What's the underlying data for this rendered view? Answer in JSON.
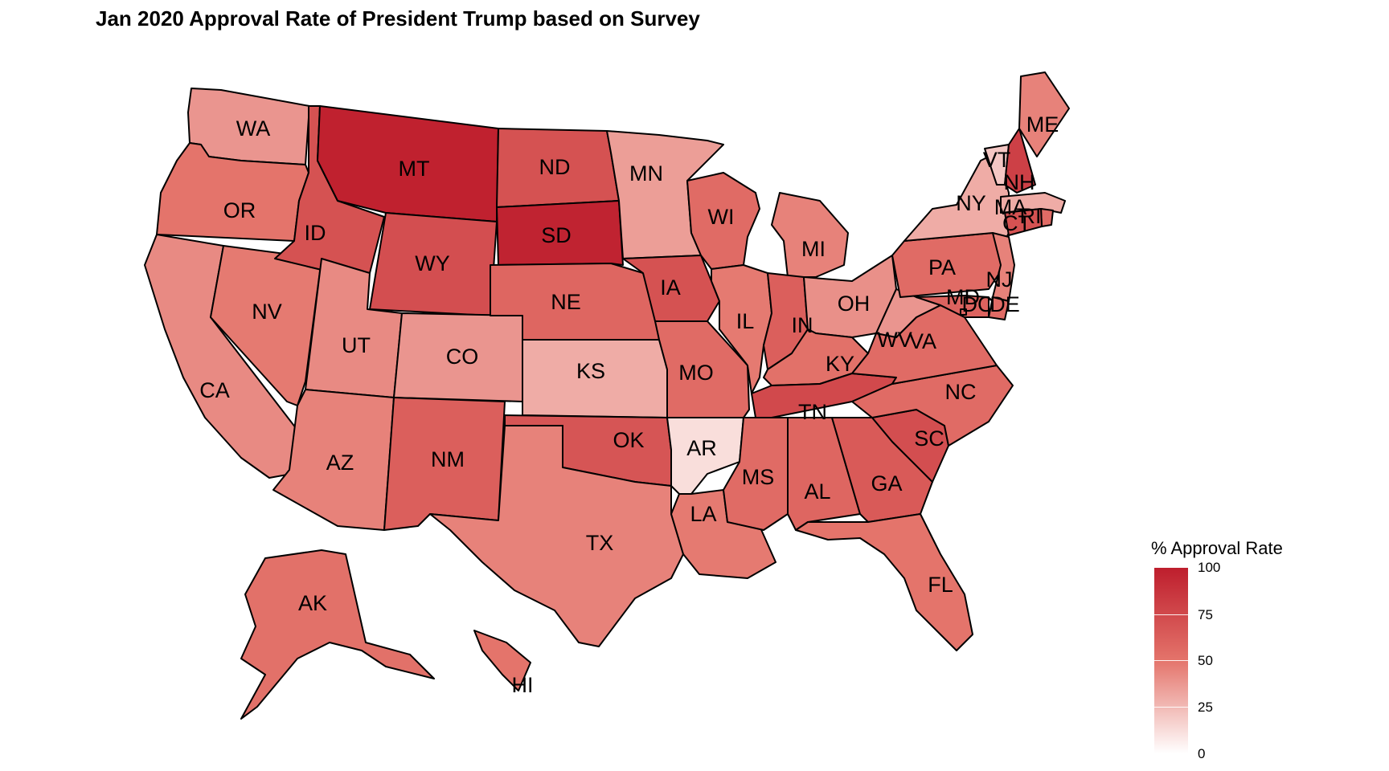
{
  "title": "Jan 2020 Approval Rate of President Trump based on Survey",
  "legend": {
    "title": "% Approval Rate",
    "ticks": [
      "100",
      "75",
      "50",
      "25",
      "0"
    ],
    "scale": {
      "min": 0,
      "mid": 50,
      "max": 100,
      "low_color": "#ffffff",
      "mid_color": "#e4746b",
      "high_color": "#be1e2d"
    }
  },
  "states": [
    {
      "abbr": "WA",
      "approval": 38
    },
    {
      "abbr": "OR",
      "approval": 50
    },
    {
      "abbr": "CA",
      "approval": 42
    },
    {
      "abbr": "NV",
      "approval": 48
    },
    {
      "abbr": "ID",
      "approval": 70
    },
    {
      "abbr": "MT",
      "approval": 98
    },
    {
      "abbr": "WY",
      "approval": 72
    },
    {
      "abbr": "UT",
      "approval": 42
    },
    {
      "abbr": "AZ",
      "approval": 45
    },
    {
      "abbr": "CO",
      "approval": 38
    },
    {
      "abbr": "NM",
      "approval": 62
    },
    {
      "abbr": "ND",
      "approval": 70
    },
    {
      "abbr": "SD",
      "approval": 97
    },
    {
      "abbr": "NE",
      "approval": 58
    },
    {
      "abbr": "KS",
      "approval": 30
    },
    {
      "abbr": "OK",
      "approval": 68
    },
    {
      "abbr": "TX",
      "approval": 45
    },
    {
      "abbr": "MN",
      "approval": 35
    },
    {
      "abbr": "IA",
      "approval": 70
    },
    {
      "abbr": "MO",
      "approval": 55
    },
    {
      "abbr": "AR",
      "approval": 12
    },
    {
      "abbr": "LA",
      "approval": 48
    },
    {
      "abbr": "WI",
      "approval": 55
    },
    {
      "abbr": "IL",
      "approval": 48
    },
    {
      "abbr": "MI",
      "approval": 45
    },
    {
      "abbr": "IN",
      "approval": 62
    },
    {
      "abbr": "OH",
      "approval": 40
    },
    {
      "abbr": "KY",
      "approval": 52
    },
    {
      "abbr": "TN",
      "approval": 75
    },
    {
      "abbr": "MS",
      "approval": 55
    },
    {
      "abbr": "AL",
      "approval": 58
    },
    {
      "abbr": "GA",
      "approval": 65
    },
    {
      "abbr": "FL",
      "approval": 50
    },
    {
      "abbr": "SC",
      "approval": 72
    },
    {
      "abbr": "NC",
      "approval": 55
    },
    {
      "abbr": "VA",
      "approval": 55
    },
    {
      "abbr": "WV",
      "approval": 38
    },
    {
      "abbr": "PA",
      "approval": 55
    },
    {
      "abbr": "NY",
      "approval": 30
    },
    {
      "abbr": "VT",
      "approval": 20
    },
    {
      "abbr": "NH",
      "approval": 80
    },
    {
      "abbr": "ME",
      "approval": 45
    },
    {
      "abbr": "MA",
      "approval": 30
    },
    {
      "abbr": "RI",
      "approval": 55
    },
    {
      "abbr": "CT",
      "approval": 70
    },
    {
      "abbr": "NJ",
      "approval": 45
    },
    {
      "abbr": "DE",
      "approval": 55
    },
    {
      "abbr": "MD",
      "approval": 60
    },
    {
      "abbr": "DC",
      "approval": 60
    },
    {
      "abbr": "AK",
      "approval": 52
    },
    {
      "abbr": "HI",
      "approval": 50
    }
  ]
}
